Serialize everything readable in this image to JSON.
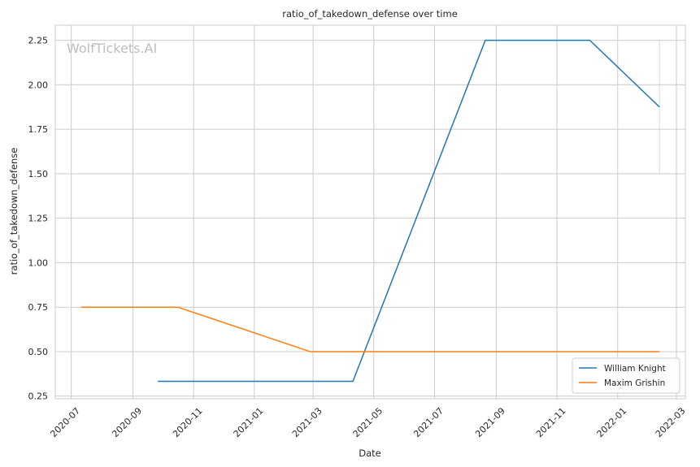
{
  "chart_data": {
    "type": "line",
    "title": "ratio_of_takedown_defense over time",
    "xlabel": "Date",
    "ylabel": "ratio_of_takedown_defense",
    "watermark": "WolfTickets.AI",
    "xlim": [
      "2020-06-15",
      "2022-03-10"
    ],
    "ylim": [
      0.235,
      2.335
    ],
    "x_ticks": [
      "2020-07",
      "2020-09",
      "2020-11",
      "2021-01",
      "2021-03",
      "2021-05",
      "2021-07",
      "2021-09",
      "2021-11",
      "2022-01",
      "2022-03"
    ],
    "x_tick_dates": [
      "2020-07-01",
      "2020-09-01",
      "2020-11-01",
      "2021-01-01",
      "2021-03-01",
      "2021-05-01",
      "2021-07-01",
      "2021-09-01",
      "2021-11-01",
      "2022-01-01",
      "2022-03-01"
    ],
    "y_ticks": [
      "0.25",
      "0.50",
      "0.75",
      "1.00",
      "1.25",
      "1.50",
      "1.75",
      "2.00",
      "2.25"
    ],
    "y_tick_values": [
      0.25,
      0.5,
      0.75,
      1.0,
      1.25,
      1.5,
      1.75,
      2.0,
      2.25
    ],
    "grid": true,
    "legend_position": "bottom-right",
    "series": [
      {
        "name": "William Knight",
        "color": "#1f77b4",
        "x": [
          "2020-09-26",
          "2021-04-10",
          "2021-08-21",
          "2021-12-04",
          "2022-02-12"
        ],
        "y": [
          0.333,
          0.333,
          2.25,
          2.25,
          1.875
        ]
      },
      {
        "name": "Maxim Grishin",
        "color": "#ff7f0e",
        "x": [
          "2020-07-11",
          "2020-10-16",
          "2021-02-26",
          "2022-02-12"
        ],
        "y": [
          0.75,
          0.75,
          0.5,
          0.5
        ]
      }
    ],
    "error_band": {
      "x": "2022-02-12",
      "y_range": [
        1.5,
        2.25
      ],
      "color": "#a6c8e3"
    }
  }
}
